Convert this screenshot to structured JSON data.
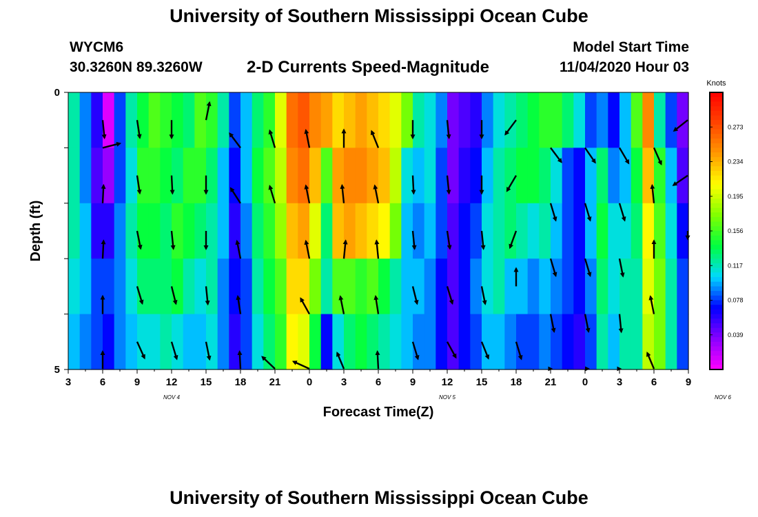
{
  "header": {
    "title": "University of Southern Mississippi Ocean Cube",
    "station": "WYCM6",
    "coordinates": "30.3260N 89.3260W",
    "subtitle": "2-D Currents Speed-Magnitude",
    "model_start_label": "Model Start Time",
    "model_start_value": "11/04/2020 Hour 03"
  },
  "footer": {
    "title": "University of Southern Mississippi Ocean Cube"
  },
  "chart_data": {
    "type": "heatmap",
    "title": "2-D Currents Speed-Magnitude",
    "xlabel": "Forecast Time(Z)",
    "ylabel": "Depth (ft)",
    "x_tick_labels": [
      "3",
      "6",
      "9",
      "12",
      "15",
      "18",
      "21",
      "0",
      "3",
      "6",
      "9",
      "12",
      "15",
      "18",
      "21",
      "0",
      "3",
      "6",
      "9"
    ],
    "date_labels": [
      {
        "text": "NOV  4",
        "hours_from_start": 9
      },
      {
        "text": "NOV  5",
        "hours_from_start": 33
      },
      {
        "text": "NOV  6",
        "hours_from_start": 57
      }
    ],
    "x_range_hours": [
      0,
      54
    ],
    "y_tick_labels": [
      "0",
      "5"
    ],
    "ylim": [
      0,
      5
    ],
    "y_inverted": true,
    "depth_levels": 5,
    "colorbar": {
      "unit": "Knots",
      "min": 0.0,
      "max": 0.312,
      "tick_values": [
        0.039,
        0.078,
        0.117,
        0.156,
        0.195,
        0.234,
        0.273
      ],
      "tick_labels": [
        "0.039",
        "0.078",
        "0.117",
        "0.156",
        "0.195",
        "0.234",
        "0.273"
      ],
      "colors": [
        "#ff00ff",
        "#8800ff",
        "#0000ff",
        "#00d8ff",
        "#00ff40",
        "#80ff00",
        "#ffff00",
        "#ff9900",
        "#ff4400",
        "#ff0000"
      ]
    },
    "column_hours": [
      0,
      1,
      2,
      3,
      4,
      5,
      6,
      7,
      8,
      9,
      10,
      11,
      12,
      13,
      14,
      15,
      16,
      17,
      18,
      19,
      20,
      21,
      22,
      23,
      24,
      25,
      26,
      27,
      28,
      29,
      30,
      31,
      32,
      33,
      34,
      35,
      36,
      37,
      38,
      39,
      40,
      41,
      42,
      43,
      44,
      45,
      46,
      47,
      48,
      49,
      50,
      51,
      52,
      53
    ],
    "speed_knots": [
      [
        0.12,
        0.09,
        0.06,
        0.01,
        0.08,
        0.12,
        0.14,
        0.16,
        0.15,
        0.14,
        0.13,
        0.16,
        0.15,
        0.12,
        0.08,
        0.1,
        0.13,
        0.15,
        0.2,
        0.26,
        0.27,
        0.25,
        0.24,
        0.22,
        0.23,
        0.24,
        0.23,
        0.22,
        0.2,
        0.17,
        0.12,
        0.11,
        0.09,
        0.04,
        0.05,
        0.06,
        0.09,
        0.11,
        0.12,
        0.13,
        0.14,
        0.15,
        0.15,
        0.13,
        0.11,
        0.08,
        0.09,
        0.07,
        0.1,
        0.16,
        0.25,
        0.12,
        0.08,
        0.04
      ],
      [
        0.12,
        0.09,
        0.05,
        0.03,
        0.08,
        0.11,
        0.15,
        0.15,
        0.14,
        0.13,
        0.15,
        0.15,
        0.13,
        0.1,
        0.07,
        0.1,
        0.14,
        0.16,
        0.19,
        0.25,
        0.26,
        0.23,
        0.16,
        0.24,
        0.25,
        0.25,
        0.24,
        0.23,
        0.19,
        0.11,
        0.1,
        0.11,
        0.08,
        0.04,
        0.06,
        0.07,
        0.1,
        0.12,
        0.13,
        0.14,
        0.14,
        0.13,
        0.11,
        0.08,
        0.07,
        0.1,
        0.13,
        0.09,
        0.1,
        0.14,
        0.23,
        0.15,
        0.1,
        0.05
      ],
      [
        0.12,
        0.1,
        0.06,
        0.06,
        0.09,
        0.12,
        0.14,
        0.14,
        0.13,
        0.15,
        0.14,
        0.13,
        0.12,
        0.1,
        0.06,
        0.09,
        0.13,
        0.15,
        0.18,
        0.23,
        0.24,
        0.2,
        0.13,
        0.23,
        0.24,
        0.23,
        0.22,
        0.21,
        0.17,
        0.1,
        0.09,
        0.1,
        0.08,
        0.05,
        0.07,
        0.08,
        0.11,
        0.12,
        0.13,
        0.12,
        0.11,
        0.12,
        0.1,
        0.08,
        0.07,
        0.1,
        0.14,
        0.11,
        0.11,
        0.13,
        0.21,
        0.16,
        0.11,
        0.07
      ],
      [
        0.11,
        0.1,
        0.08,
        0.08,
        0.09,
        0.11,
        0.13,
        0.13,
        0.13,
        0.14,
        0.12,
        0.11,
        0.12,
        0.09,
        0.07,
        0.08,
        0.12,
        0.14,
        0.16,
        0.22,
        0.22,
        0.17,
        0.12,
        0.16,
        0.16,
        0.15,
        0.16,
        0.14,
        0.12,
        0.1,
        0.1,
        0.09,
        0.07,
        0.05,
        0.07,
        0.09,
        0.11,
        0.12,
        0.1,
        0.1,
        0.09,
        0.1,
        0.09,
        0.08,
        0.07,
        0.09,
        0.13,
        0.11,
        0.12,
        0.12,
        0.2,
        0.17,
        0.12,
        0.08
      ],
      [
        0.1,
        0.09,
        0.08,
        0.07,
        0.09,
        0.1,
        0.11,
        0.11,
        0.12,
        0.11,
        0.1,
        0.1,
        0.11,
        0.09,
        0.06,
        0.08,
        0.11,
        0.13,
        0.15,
        0.21,
        0.2,
        0.14,
        0.07,
        0.11,
        0.13,
        0.14,
        0.13,
        0.12,
        0.11,
        0.1,
        0.09,
        0.09,
        0.07,
        0.05,
        0.07,
        0.08,
        0.1,
        0.1,
        0.09,
        0.08,
        0.08,
        0.09,
        0.08,
        0.07,
        0.06,
        0.08,
        0.12,
        0.1,
        0.12,
        0.12,
        0.19,
        0.17,
        0.12,
        0.08
      ]
    ],
    "vectors": [
      {
        "hour": 3,
        "depth": 0.5,
        "u": 0.1,
        "v": -1
      },
      {
        "hour": 3,
        "depth": 1.0,
        "u": 1,
        "v": 0.25
      },
      {
        "hour": 3,
        "depth": 2.0,
        "u": 0.05,
        "v": 1
      },
      {
        "hour": 3,
        "depth": 3.0,
        "u": 0.05,
        "v": 1
      },
      {
        "hour": 3,
        "depth": 4.0,
        "u": 0,
        "v": 1
      },
      {
        "hour": 3,
        "depth": 5.0,
        "u": 0,
        "v": 1
      },
      {
        "hour": 6,
        "depth": 0.5,
        "u": 0.15,
        "v": -1
      },
      {
        "hour": 6,
        "depth": 1.5,
        "u": 0.15,
        "v": -1
      },
      {
        "hour": 6,
        "depth": 2.5,
        "u": 0.2,
        "v": -1
      },
      {
        "hour": 6,
        "depth": 3.5,
        "u": 0.3,
        "v": -1
      },
      {
        "hour": 6,
        "depth": 4.5,
        "u": 0.45,
        "v": -1
      },
      {
        "hour": 9,
        "depth": 0.5,
        "u": 0,
        "v": -1
      },
      {
        "hour": 9,
        "depth": 1.5,
        "u": 0.05,
        "v": -1
      },
      {
        "hour": 9,
        "depth": 2.5,
        "u": 0.1,
        "v": -1
      },
      {
        "hour": 9,
        "depth": 3.5,
        "u": 0.25,
        "v": -1
      },
      {
        "hour": 9,
        "depth": 4.5,
        "u": 0.3,
        "v": -1
      },
      {
        "hour": 12,
        "depth": 0.5,
        "u": 0.2,
        "v": 1
      },
      {
        "hour": 12,
        "depth": 1.5,
        "u": 0,
        "v": -1
      },
      {
        "hour": 12,
        "depth": 2.5,
        "u": 0,
        "v": -1
      },
      {
        "hour": 12,
        "depth": 3.5,
        "u": 0.1,
        "v": -1
      },
      {
        "hour": 12,
        "depth": 4.5,
        "u": 0.2,
        "v": -1
      },
      {
        "hour": 15,
        "depth": 1.0,
        "u": -0.6,
        "v": 0.8
      },
      {
        "hour": 15,
        "depth": 2.0,
        "u": -0.55,
        "v": 0.85
      },
      {
        "hour": 15,
        "depth": 3.0,
        "u": -0.2,
        "v": 1
      },
      {
        "hour": 15,
        "depth": 4.0,
        "u": -0.15,
        "v": 1
      },
      {
        "hour": 15,
        "depth": 5.0,
        "u": -0.05,
        "v": 1
      },
      {
        "hour": 18,
        "depth": 1.0,
        "u": -0.3,
        "v": 1
      },
      {
        "hour": 18,
        "depth": 2.0,
        "u": -0.3,
        "v": 1
      },
      {
        "hour": 18,
        "depth": 5.0,
        "u": -0.7,
        "v": 0.7
      },
      {
        "hour": 21,
        "depth": 1.0,
        "u": -0.2,
        "v": 1
      },
      {
        "hour": 21,
        "depth": 2.0,
        "u": -0.2,
        "v": 1
      },
      {
        "hour": 21,
        "depth": 3.0,
        "u": -0.2,
        "v": 1
      },
      {
        "hour": 21,
        "depth": 4.0,
        "u": -0.5,
        "v": 0.9
      },
      {
        "hour": 21,
        "depth": 5.0,
        "u": -0.9,
        "v": 0.45
      },
      {
        "hour": 24,
        "depth": 1.0,
        "u": 0,
        "v": 1
      },
      {
        "hour": 24,
        "depth": 2.0,
        "u": -0.1,
        "v": 1
      },
      {
        "hour": 24,
        "depth": 3.0,
        "u": 0.1,
        "v": 1
      },
      {
        "hour": 24,
        "depth": 4.0,
        "u": -0.2,
        "v": 1
      },
      {
        "hour": 24,
        "depth": 5.0,
        "u": -0.4,
        "v": 1
      },
      {
        "hour": 27,
        "depth": 1.0,
        "u": -0.4,
        "v": 1
      },
      {
        "hour": 27,
        "depth": 2.0,
        "u": -0.2,
        "v": 1
      },
      {
        "hour": 27,
        "depth": 3.0,
        "u": -0.1,
        "v": 1
      },
      {
        "hour": 27,
        "depth": 4.0,
        "u": -0.15,
        "v": 1
      },
      {
        "hour": 27,
        "depth": 5.0,
        "u": -0.05,
        "v": 1
      },
      {
        "hour": 30,
        "depth": 0.5,
        "u": 0,
        "v": -1
      },
      {
        "hour": 30,
        "depth": 1.5,
        "u": 0.05,
        "v": -1
      },
      {
        "hour": 30,
        "depth": 2.5,
        "u": 0.1,
        "v": -1
      },
      {
        "hour": 30,
        "depth": 3.5,
        "u": 0.25,
        "v": -1
      },
      {
        "hour": 30,
        "depth": 4.5,
        "u": 0.3,
        "v": -1
      },
      {
        "hour": 33,
        "depth": 0.5,
        "u": 0.1,
        "v": -1
      },
      {
        "hour": 33,
        "depth": 1.5,
        "u": 0.1,
        "v": -1
      },
      {
        "hour": 33,
        "depth": 2.5,
        "u": 0.15,
        "v": -1
      },
      {
        "hour": 33,
        "depth": 3.5,
        "u": 0.3,
        "v": -1
      },
      {
        "hour": 33,
        "depth": 4.5,
        "u": 0.55,
        "v": -1
      },
      {
        "hour": 36,
        "depth": 0.5,
        "u": 0,
        "v": -1
      },
      {
        "hour": 36,
        "depth": 1.5,
        "u": 0,
        "v": -1
      },
      {
        "hour": 36,
        "depth": 2.5,
        "u": 0.1,
        "v": -1
      },
      {
        "hour": 36,
        "depth": 3.5,
        "u": 0.2,
        "v": -1
      },
      {
        "hour": 36,
        "depth": 4.5,
        "u": 0.4,
        "v": -1
      },
      {
        "hour": 39,
        "depth": 0.5,
        "u": -0.6,
        "v": -0.8
      },
      {
        "hour": 39,
        "depth": 1.5,
        "u": -0.5,
        "v": -0.85
      },
      {
        "hour": 39,
        "depth": 2.5,
        "u": -0.35,
        "v": -0.95
      },
      {
        "hour": 39,
        "depth": 3.5,
        "u": 0,
        "v": 1
      },
      {
        "hour": 39,
        "depth": 4.5,
        "u": 0.3,
        "v": -1
      },
      {
        "hour": 42,
        "depth": 1.0,
        "u": 0.6,
        "v": -0.8
      },
      {
        "hour": 42,
        "depth": 2.0,
        "u": 0.3,
        "v": -1
      },
      {
        "hour": 42,
        "depth": 3.0,
        "u": 0.3,
        "v": -1
      },
      {
        "hour": 42,
        "depth": 4.0,
        "u": 0.2,
        "v": -1
      },
      {
        "hour": 42,
        "depth": 5.0,
        "u": 0.05,
        "v": -1
      },
      {
        "hour": 45,
        "depth": 1.0,
        "u": 0.55,
        "v": -0.8
      },
      {
        "hour": 45,
        "depth": 2.0,
        "u": 0.3,
        "v": -1
      },
      {
        "hour": 45,
        "depth": 3.0,
        "u": 0.3,
        "v": -1
      },
      {
        "hour": 45,
        "depth": 4.0,
        "u": 0.2,
        "v": -1
      },
      {
        "hour": 45,
        "depth": 5.0,
        "u": 0.2,
        "v": -1
      },
      {
        "hour": 48,
        "depth": 1.0,
        "u": 0.5,
        "v": -0.85
      },
      {
        "hour": 48,
        "depth": 2.0,
        "u": 0.3,
        "v": -1
      },
      {
        "hour": 48,
        "depth": 3.0,
        "u": 0.2,
        "v": -1
      },
      {
        "hour": 48,
        "depth": 4.0,
        "u": 0.1,
        "v": -1
      },
      {
        "hour": 48,
        "depth": 5.0,
        "u": 0.05,
        "v": -1
      },
      {
        "hour": 51,
        "depth": 1.0,
        "u": 0.4,
        "v": -0.9
      },
      {
        "hour": 51,
        "depth": 2.0,
        "u": -0.1,
        "v": 1
      },
      {
        "hour": 51,
        "depth": 3.0,
        "u": 0,
        "v": 1
      },
      {
        "hour": 51,
        "depth": 4.0,
        "u": -0.2,
        "v": 1
      },
      {
        "hour": 51,
        "depth": 5.0,
        "u": -0.4,
        "v": 1
      },
      {
        "hour": 54,
        "depth": 0.5,
        "u": -0.8,
        "v": -0.6
      },
      {
        "hour": 54,
        "depth": 1.5,
        "u": -0.85,
        "v": -0.55
      },
      {
        "hour": 54,
        "depth": 2.5,
        "u": 0.9,
        "v": -0.45
      }
    ]
  }
}
